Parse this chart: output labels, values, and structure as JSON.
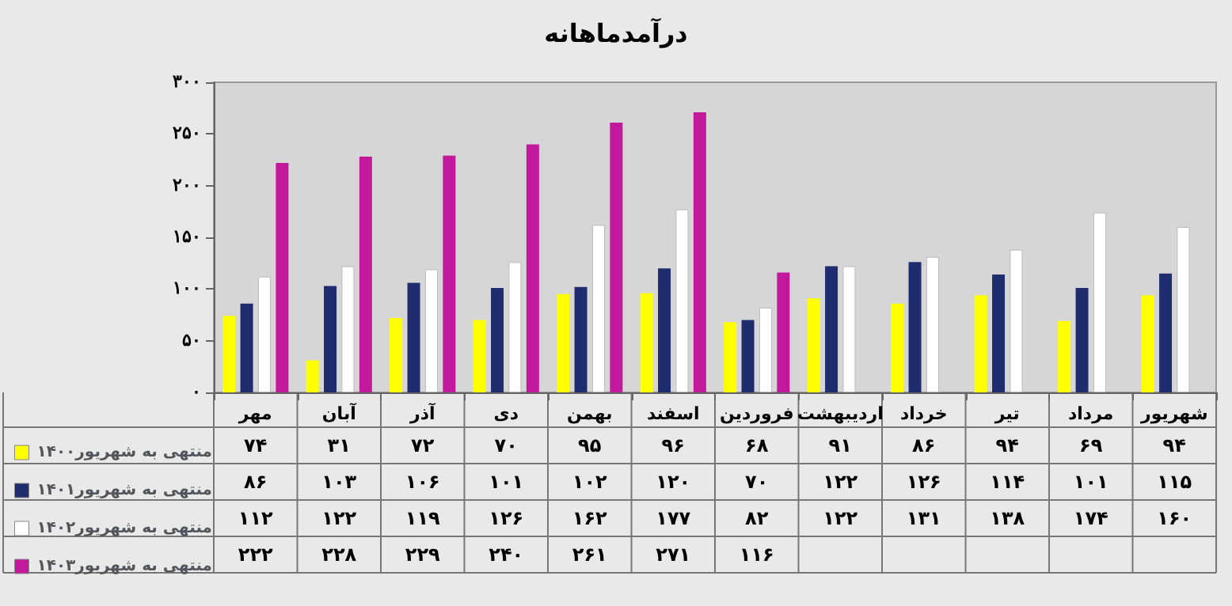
{
  "chart_data": {
    "type": "bar",
    "title": "درآمدماهانه",
    "categories": [
      "مهر",
      "آبان",
      "آذر",
      "دی",
      "بهمن",
      "اسفند",
      "فروردین",
      "اردیبهشت",
      "خرداد",
      "تیر",
      "مرداد",
      "شهریور"
    ],
    "series": [
      {
        "name": "منتهی به شهریور۱۴۰۰",
        "color": "#ffff00",
        "values": [
          74,
          31,
          72,
          70,
          95,
          96,
          68,
          91,
          86,
          94,
          69,
          94
        ],
        "value_labels": [
          "۷۴",
          "۳۱",
          "۷۲",
          "۷۰",
          "۹۵",
          "۹۶",
          "۶۸",
          "۹۱",
          "۸۶",
          "۹۴",
          "۶۹",
          "۹۴"
        ]
      },
      {
        "name": "منتهی به شهریور۱۴۰۱",
        "color": "#1f2d6e",
        "values": [
          86,
          103,
          106,
          101,
          102,
          120,
          70,
          122,
          126,
          114,
          101,
          115
        ],
        "value_labels": [
          "۸۶",
          "۱۰۳",
          "۱۰۶",
          "۱۰۱",
          "۱۰۲",
          "۱۲۰",
          "۷۰",
          "۱۲۲",
          "۱۲۶",
          "۱۱۴",
          "۱۰۱",
          "۱۱۵"
        ]
      },
      {
        "name": "منتهی به شهریور۱۴۰۲",
        "color": "#ffffff",
        "values": [
          112,
          122,
          119,
          126,
          162,
          177,
          82,
          122,
          131,
          138,
          174,
          160
        ],
        "value_labels": [
          "۱۱۲",
          "۱۲۲",
          "۱۱۹",
          "۱۲۶",
          "۱۶۲",
          "۱۷۷",
          "۸۲",
          "۱۲۲",
          "۱۳۱",
          "۱۳۸",
          "۱۷۴",
          "۱۶۰"
        ]
      },
      {
        "name": "منتهی به شهریور۱۴۰۳",
        "color": "#c2189b",
        "values": [
          222,
          228,
          229,
          240,
          261,
          271,
          116,
          null,
          null,
          null,
          null,
          null
        ],
        "value_labels": [
          "۲۲۲",
          "۲۲۸",
          "۲۲۹",
          "۲۴۰",
          "۲۶۱",
          "۲۷۱",
          "۱۱۶",
          null,
          null,
          null,
          null,
          null
        ]
      }
    ],
    "ylim": [
      0,
      300
    ],
    "yticks": [
      {
        "value": 0,
        "label": "۰"
      },
      {
        "value": 50,
        "label": "۵۰"
      },
      {
        "value": 100,
        "label": "۱۰۰"
      },
      {
        "value": 150,
        "label": "۱۵۰"
      },
      {
        "value": 200,
        "label": "۲۰۰"
      },
      {
        "value": 250,
        "label": "۲۵۰"
      },
      {
        "value": 300,
        "label": "۳۰۰"
      }
    ],
    "grid": false,
    "legend": "bottom left"
  }
}
